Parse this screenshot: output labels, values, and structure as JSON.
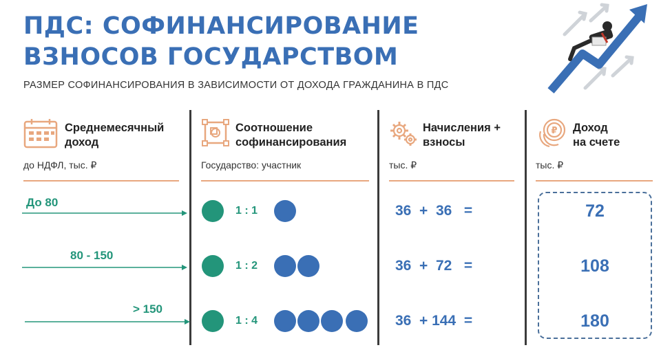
{
  "header": {
    "title_line1": "ПДС: СОФИНАНСИРОВАНИЕ",
    "title_line2": "ВЗНОСОВ ГОСУДАРСТВОМ",
    "subtitle": "РАЗМЕР СОФИНАНСИРОВАНИЯ В ЗАВИСИМОСТИ ОТ ДОХОДА ГРАЖДАНИНА В ПДС"
  },
  "columns": [
    {
      "icon": "calendar-icon",
      "title_line1": "Среднемесячный",
      "title_line2": "доход",
      "sub": "до НДФЛ, тыс. ₽"
    },
    {
      "icon": "ratio-frame-icon",
      "title_line1": "Соотношение",
      "title_line2": "софинансирования",
      "sub": "Государство: участник"
    },
    {
      "icon": "gears-icon",
      "title_line1": "Начисления +",
      "title_line2": "взносы",
      "sub": "тыс. ₽"
    },
    {
      "icon": "ruble-coins-icon",
      "title_line1": "Доход",
      "title_line2": "на счете",
      "sub": "тыс. ₽"
    }
  ],
  "rows": [
    {
      "income": "До 80",
      "ratio": "1 : 1",
      "state_dots": 1,
      "participant_dots": 1,
      "sum": "36  +  36   =",
      "result": "72"
    },
    {
      "income": "80 - 150",
      "ratio": "1 : 2",
      "state_dots": 1,
      "participant_dots": 2,
      "sum": "36  +  72   =",
      "result": "108"
    },
    {
      "income": "> 150",
      "ratio": "1 : 4",
      "state_dots": 1,
      "participant_dots": 4,
      "sum": "36  + 144  =",
      "result": "180"
    }
  ],
  "colors": {
    "blue": "#3a6fb5",
    "green": "#23957a",
    "accent_line": "#e8a77e"
  }
}
